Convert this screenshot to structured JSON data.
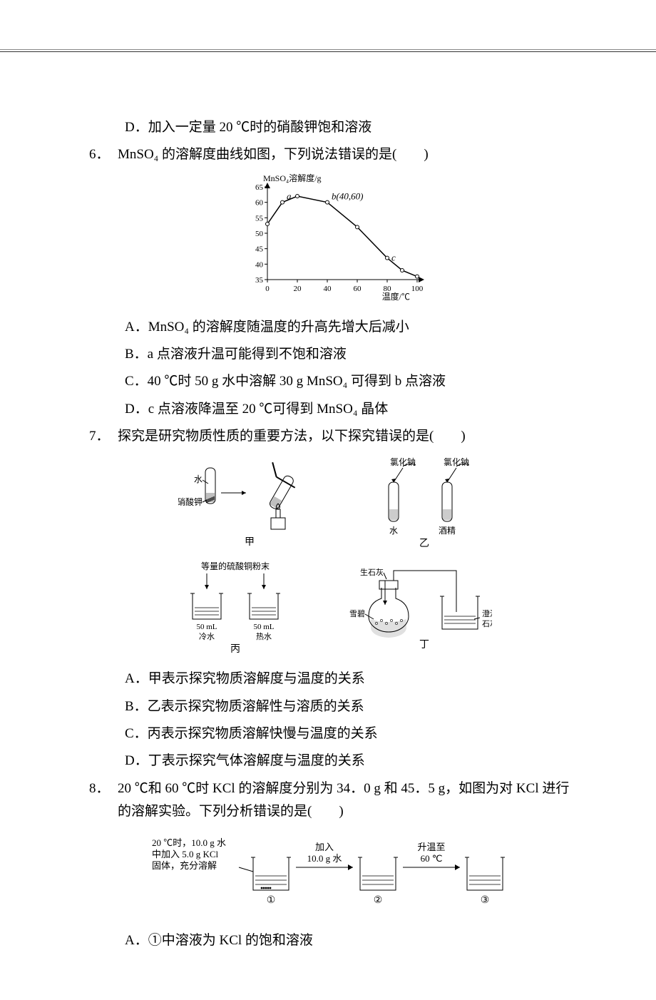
{
  "q5_optD": "D．加入一定量 20 ℃时的硝酸钾饱和溶液",
  "q6": {
    "num": "6．",
    "stem": "MnSO₄ 的溶解度曲线如图，下列说法错误的是(　　)",
    "chart": {
      "ylabel": "MnSO₄溶解度/g",
      "xlabel": "温度/℃",
      "xmin": 0,
      "xmax": 100,
      "xtick": 20,
      "ymin": 35,
      "ymax": 65,
      "ytick": 5,
      "curve": [
        [
          0,
          53
        ],
        [
          10,
          60
        ],
        [
          20,
          62
        ],
        [
          40,
          60
        ],
        [
          60,
          52
        ],
        [
          80,
          42
        ],
        [
          90,
          38
        ],
        [
          100,
          36
        ]
      ],
      "points_a": {
        "x": 10,
        "y": 60,
        "lab": "a"
      },
      "points_b": {
        "x": 40,
        "y": 60,
        "lab": "b(40,60)"
      },
      "points_c": {
        "x": 80,
        "y": 42,
        "lab": "c"
      },
      "color_axis": "#000",
      "color_bg": "#fff"
    },
    "optA": "A．MnSO₄ 的溶解度随温度的升高先增大后减小",
    "optB": "B．a 点溶液升温可能得到不饱和溶液",
    "optC": "C．40 ℃时 50 g 水中溶解 30 g MnSO₄ 可得到 b 点溶液",
    "optD": "D．c 点溶液降温至 20 ℃可得到 MnSO₄ 晶体"
  },
  "q7": {
    "num": "7．",
    "stem": "探究是研究物质性质的重要方法，以下探究错误的是(　　)",
    "labels": {
      "nacl": "氯化钠",
      "water": "水",
      "kno3": "硝酸钾",
      "alcohol": "酒精",
      "cuso4": "等量的硫酸铜粉末",
      "ml50": "50 mL",
      "cold": "冷水",
      "hot": "热水",
      "cao": "生石灰",
      "sprite": "雪碧",
      "lime": "澄清",
      "lime2": "石灰水",
      "jia": "甲",
      "yi": "乙",
      "bing": "丙",
      "ding": "丁"
    },
    "optA": "A．甲表示探究物质溶解度与温度的关系",
    "optB": "B．乙表示探究物质溶解性与溶质的关系",
    "optC": "C．丙表示探究物质溶解快慢与温度的关系",
    "optD": "D．丁表示探究气体溶解度与温度的关系"
  },
  "q8": {
    "num": "8．",
    "stem_a": "20 ℃和 60 ℃时 KCl 的溶解度分别为 34．0 g 和 45．5 g，如图为对 KCl 进行",
    "stem_b": "的溶解实验。下列分析错误的是(　　)",
    "diag": {
      "step1_l1": "20 ℃时，10.0 g 水",
      "step1_l2": "中加入 5.0 g KCl",
      "step1_l3": "固体，充分溶解",
      "step2_l1": "加入",
      "step2_l2": "10.0 g 水",
      "step3_l1": "升温至",
      "step3_l2": "60 ℃",
      "b1": "①",
      "b2": "②",
      "b3": "③"
    },
    "optA": "A．①中溶液为 KCl 的饱和溶液"
  }
}
